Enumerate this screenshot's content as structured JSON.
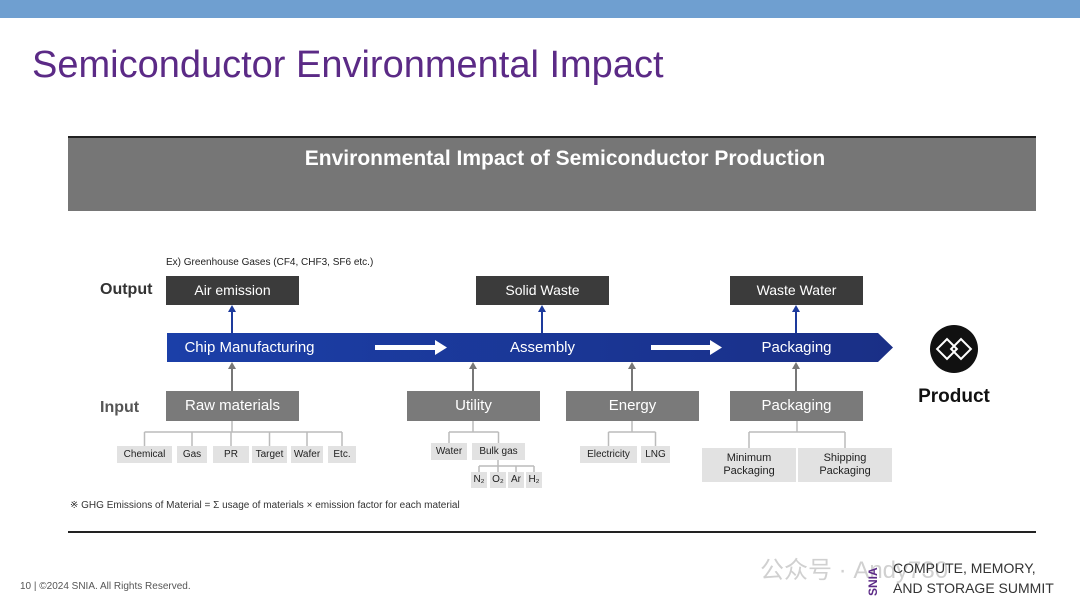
{
  "header": {
    "title": "Semiconductor Environmental Impact"
  },
  "figure": {
    "title": "Environmental Impact of Semiconductor Production",
    "output_label": "Output",
    "input_label": "Input",
    "output_note": "Ex) Greenhouse Gases (CF4, CHF3, SF6 etc.)",
    "outputs": [
      "Air emission",
      "Solid Waste",
      "Waste Water"
    ],
    "stages": [
      "Chip Manufacturing",
      "Assembly",
      "Packaging"
    ],
    "inputs": [
      {
        "label": "Raw materials",
        "items": [
          "Chemical",
          "Gas",
          "PR",
          "Target",
          "Wafer",
          "Etc."
        ]
      },
      {
        "label": "Utility",
        "items": [
          "Water",
          "Bulk gas"
        ],
        "gases": [
          "N₂",
          "O₂",
          "Ar",
          "H₂"
        ]
      },
      {
        "label": "Energy",
        "items": [
          "Electricity",
          "LNG"
        ]
      },
      {
        "label": "Packaging",
        "items": [
          "Minimum Packaging",
          "Shipping Packaging"
        ]
      }
    ],
    "product": "Product",
    "footnote": "※ GHG Emissions of Material = Σ usage of materials × emission factor for each material"
  },
  "footer": {
    "copyright": "10 | ©2024 SNIA. All Rights Reserved.",
    "logo": "SNIA",
    "event": [
      "COMPUTE, MEMORY,",
      "AND STORAGE SUMMIT"
    ]
  },
  "watermark": "公众号 · Andy730"
}
